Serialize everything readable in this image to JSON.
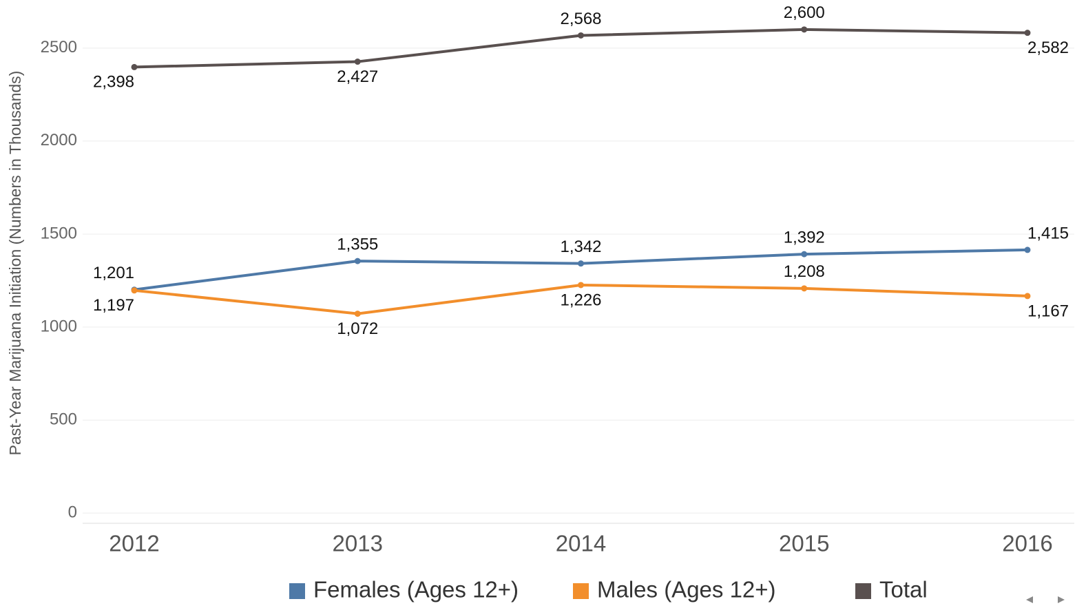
{
  "chart_data": {
    "type": "line",
    "y_axis_label": "Past-Year Marijuana Initiation (Numbers in Thousands)",
    "categories": [
      "2012",
      "2013",
      "2014",
      "2015",
      "2016"
    ],
    "series": [
      {
        "name": "Females (Ages 12+)",
        "color": "#4e79a7",
        "values": [
          1201,
          1355,
          1342,
          1392,
          1415
        ],
        "value_labels": [
          "1,201",
          "1,355",
          "1,342",
          "1,392",
          "1,415"
        ]
      },
      {
        "name": "Males (Ages 12+)",
        "color": "#f28e2b",
        "values": [
          1197,
          1072,
          1226,
          1208,
          1167
        ],
        "value_labels": [
          "1,197",
          "1,072",
          "1,226",
          "1,208",
          "1,167"
        ]
      },
      {
        "name": "Total",
        "color": "#59504f",
        "values": [
          2398,
          2427,
          2568,
          2600,
          2582
        ],
        "value_labels": [
          "2,398",
          "2,427",
          "2,568",
          "2,600",
          "2,582"
        ]
      }
    ],
    "ylim": [
      -55,
      2740
    ],
    "yticks": [
      0,
      500,
      1000,
      1500,
      2000,
      2500
    ],
    "grid": true,
    "legend": "bottom"
  }
}
